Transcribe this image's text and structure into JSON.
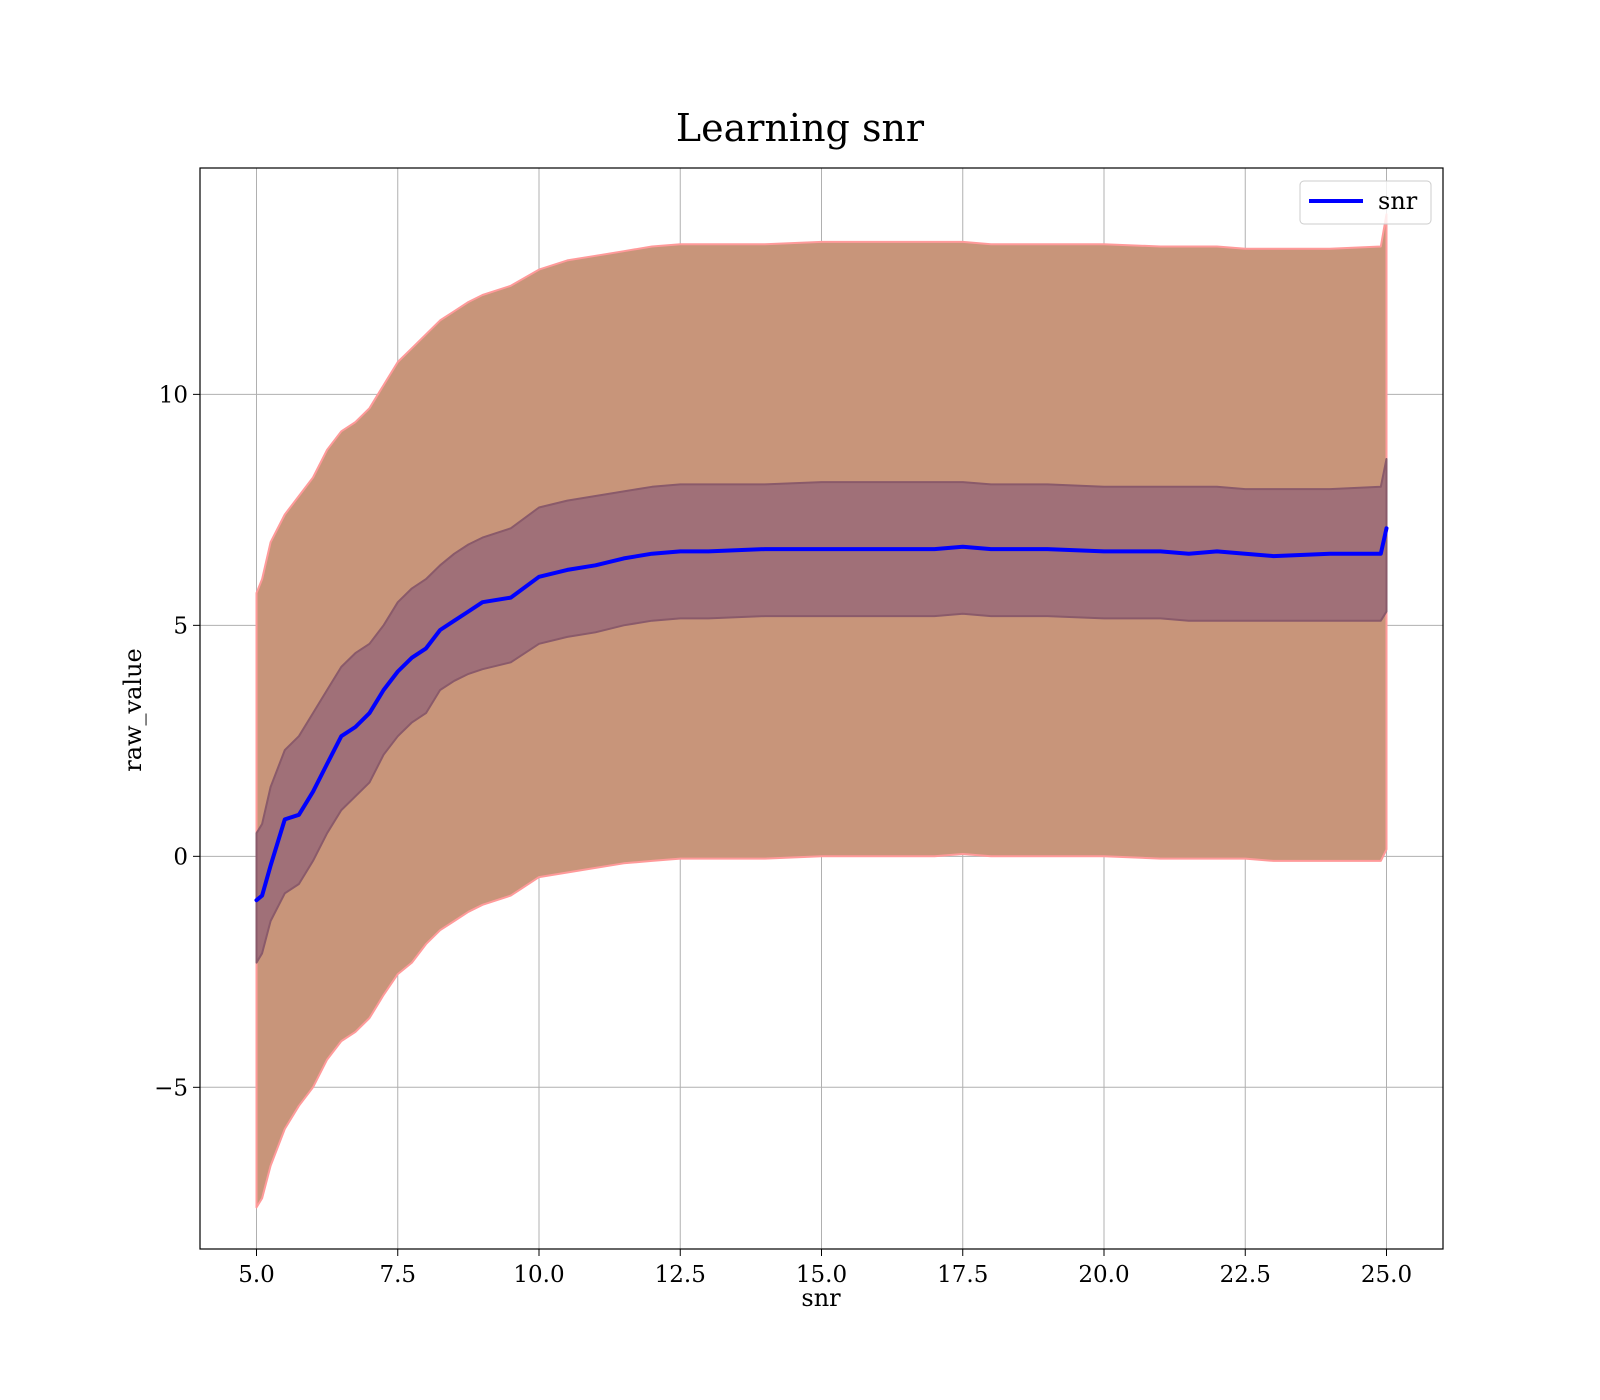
{
  "chart_data": {
    "type": "line",
    "title": "Learning snr",
    "xlabel": "snr",
    "ylabel": "raw_value",
    "xlim": [
      4.0,
      26.0
    ],
    "ylim": [
      -8.5,
      14.9
    ],
    "grid": true,
    "legend_placement": "top-right",
    "x_ticks": [
      5.0,
      7.5,
      10.0,
      12.5,
      15.0,
      17.5,
      20.0,
      22.5,
      25.0
    ],
    "x_tick_labels": [
      "5.0",
      "7.5",
      "10.0",
      "12.5",
      "15.0",
      "17.5",
      "20.0",
      "22.5",
      "25.0"
    ],
    "y_ticks": [
      -5,
      0,
      5,
      10
    ],
    "y_tick_labels": [
      "−5",
      "0",
      "5",
      "10"
    ],
    "x": [
      5.0,
      5.1,
      5.25,
      5.5,
      5.75,
      6.0,
      6.25,
      6.5,
      6.75,
      7.0,
      7.25,
      7.5,
      7.75,
      8.0,
      8.25,
      8.5,
      8.75,
      9.0,
      9.5,
      10.0,
      10.5,
      11.0,
      11.5,
      12.0,
      12.5,
      13.0,
      14.0,
      15.0,
      16.0,
      17.0,
      17.5,
      18.0,
      19.0,
      20.0,
      21.0,
      21.5,
      22.0,
      22.5,
      23.0,
      24.0,
      24.9,
      25.0
    ],
    "series": [
      {
        "name": "snr",
        "color": "#0000ff",
        "values": [
          -0.95,
          -0.85,
          -0.2,
          0.8,
          0.9,
          1.4,
          2.0,
          2.6,
          2.8,
          3.1,
          3.6,
          4.0,
          4.3,
          4.5,
          4.9,
          5.1,
          5.3,
          5.5,
          5.6,
          6.05,
          6.2,
          6.3,
          6.45,
          6.55,
          6.6,
          6.6,
          6.65,
          6.65,
          6.65,
          6.65,
          6.7,
          6.65,
          6.65,
          6.6,
          6.6,
          6.55,
          6.6,
          6.55,
          6.5,
          6.55,
          6.55,
          7.1
        ]
      }
    ],
    "bands": [
      {
        "fill": "#c8957a",
        "edge": "#ff9a9a",
        "upper": [
          5.7,
          6.0,
          6.8,
          7.4,
          7.8,
          8.2,
          8.8,
          9.2,
          9.4,
          9.7,
          10.2,
          10.7,
          11.0,
          11.3,
          11.6,
          11.8,
          12.0,
          12.15,
          12.35,
          12.7,
          12.9,
          13.0,
          13.1,
          13.2,
          13.25,
          13.25,
          13.25,
          13.3,
          13.3,
          13.3,
          13.3,
          13.25,
          13.25,
          13.25,
          13.2,
          13.2,
          13.2,
          13.15,
          13.15,
          13.15,
          13.2,
          13.9
        ],
        "lower": [
          -7.6,
          -7.4,
          -6.7,
          -5.9,
          -5.4,
          -5.0,
          -4.4,
          -4.0,
          -3.8,
          -3.5,
          -3.0,
          -2.55,
          -2.3,
          -1.9,
          -1.6,
          -1.4,
          -1.2,
          -1.05,
          -0.85,
          -0.45,
          -0.35,
          -0.25,
          -0.15,
          -0.1,
          -0.05,
          -0.05,
          -0.05,
          0.0,
          0.0,
          0.0,
          0.05,
          0.0,
          0.0,
          0.0,
          -0.05,
          -0.05,
          -0.05,
          -0.05,
          -0.1,
          -0.1,
          -0.1,
          0.15
        ]
      },
      {
        "fill": "#a07078",
        "edge": "#8a5a6a",
        "upper": [
          0.5,
          0.7,
          1.5,
          2.3,
          2.6,
          3.1,
          3.6,
          4.1,
          4.4,
          4.6,
          5.0,
          5.5,
          5.8,
          6.0,
          6.3,
          6.55,
          6.75,
          6.9,
          7.1,
          7.55,
          7.7,
          7.8,
          7.9,
          8.0,
          8.05,
          8.05,
          8.05,
          8.1,
          8.1,
          8.1,
          8.1,
          8.05,
          8.05,
          8.0,
          8.0,
          8.0,
          8.0,
          7.95,
          7.95,
          7.95,
          8.0,
          8.6
        ],
        "lower": [
          -2.3,
          -2.1,
          -1.4,
          -0.8,
          -0.6,
          -0.1,
          0.5,
          1.0,
          1.3,
          1.6,
          2.2,
          2.6,
          2.9,
          3.1,
          3.6,
          3.8,
          3.95,
          4.05,
          4.2,
          4.6,
          4.75,
          4.85,
          5.0,
          5.1,
          5.15,
          5.15,
          5.2,
          5.2,
          5.2,
          5.2,
          5.25,
          5.2,
          5.2,
          5.15,
          5.15,
          5.1,
          5.1,
          5.1,
          5.1,
          5.1,
          5.1,
          5.3
        ]
      }
    ]
  }
}
